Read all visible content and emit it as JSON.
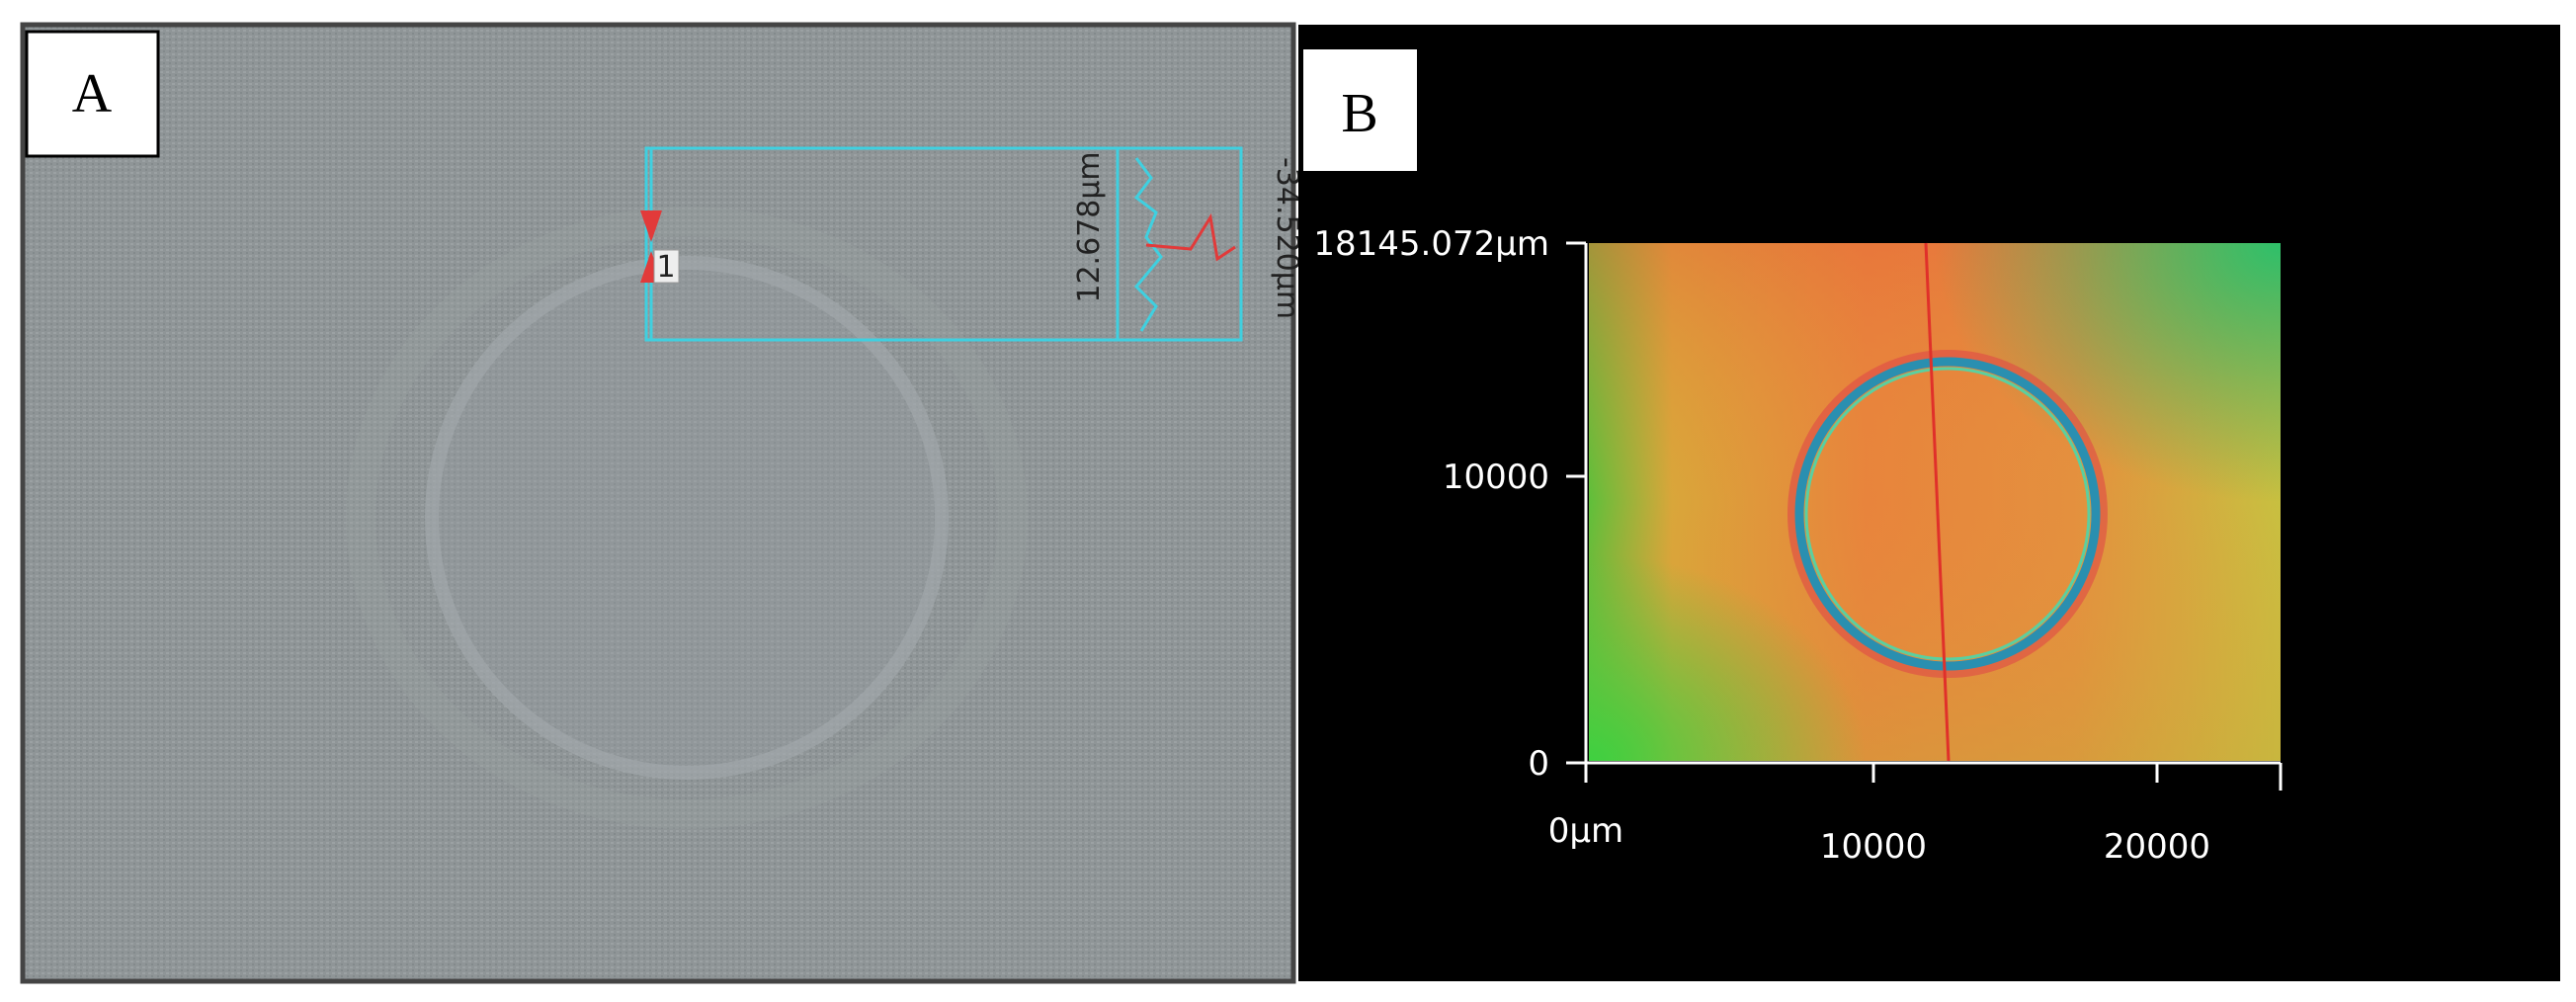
{
  "panel_a": {
    "label": "A",
    "profile_label": "1",
    "depth_label": "12.678µm",
    "height_label": "-34.520µm"
  },
  "panel_b": {
    "label": "B",
    "y_labels": [
      "18145.072µm",
      "10000",
      "0"
    ],
    "x_labels": [
      "0µm",
      "10000",
      "20000"
    ]
  }
}
